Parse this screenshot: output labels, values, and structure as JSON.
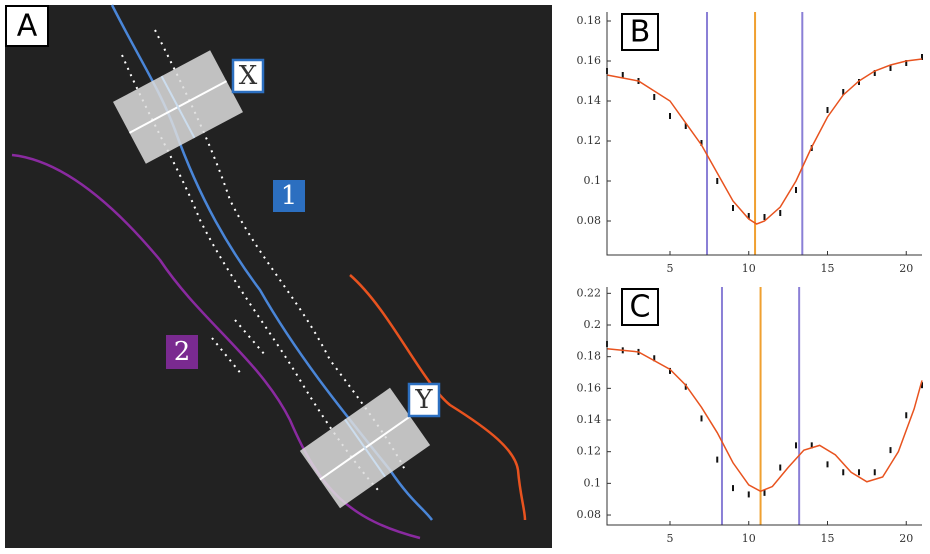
{
  "panel_labels": [
    "A",
    "B",
    "C"
  ],
  "image_labels": [
    "X",
    "Y",
    "1",
    "2"
  ],
  "chart_data": [
    {
      "type": "line",
      "xlim": [
        1,
        21
      ],
      "xticks": [
        5,
        10,
        15,
        20
      ],
      "ylim": [
        0.063,
        0.1845
      ],
      "yticks": [
        0.08,
        0.1,
        0.12,
        0.14,
        0.16,
        0.18
      ],
      "vlines": [
        7.35,
        10.4,
        13.4
      ],
      "vline_colors": [
        "#8a7fd6",
        "#f0a030",
        "#8a7fd6"
      ],
      "series": [
        {
          "style": "points",
          "color": "#111111",
          "x": [
            1,
            2,
            3,
            4,
            5,
            6,
            7,
            8,
            9,
            10,
            11,
            12,
            13,
            14,
            15,
            16,
            17,
            18,
            19,
            20,
            21
          ],
          "values": [
            0.155,
            0.153,
            0.15,
            0.142,
            0.1325,
            0.1275,
            0.119,
            0.1,
            0.0865,
            0.0825,
            0.082,
            0.084,
            0.0955,
            0.1165,
            0.1355,
            0.1445,
            0.1495,
            0.154,
            0.1565,
            0.159,
            0.162
          ]
        },
        {
          "style": "line",
          "color": "#e8531f",
          "x": [
            1,
            3,
            5,
            7,
            8,
            9,
            10,
            10.5,
            11,
            12,
            13,
            14,
            15,
            16,
            17,
            18,
            19,
            20,
            21
          ],
          "values": [
            0.153,
            0.15,
            0.14,
            0.118,
            0.104,
            0.09,
            0.081,
            0.0785,
            0.08,
            0.087,
            0.1,
            0.117,
            0.132,
            0.143,
            0.15,
            0.155,
            0.158,
            0.16,
            0.161
          ]
        }
      ]
    },
    {
      "type": "line",
      "xlim": [
        1,
        21
      ],
      "xticks": [
        5,
        10,
        15,
        20
      ],
      "ylim": [
        0.0737,
        0.224
      ],
      "yticks": [
        0.08,
        0.1,
        0.12,
        0.14,
        0.16,
        0.18,
        0.2,
        0.22
      ],
      "vlines": [
        8.3,
        10.75,
        13.2
      ],
      "vline_colors": [
        "#8a7fd6",
        "#f0a030",
        "#8a7fd6"
      ],
      "series": [
        {
          "style": "points",
          "color": "#111111",
          "x": [
            1,
            2,
            3,
            4,
            5,
            6,
            7,
            8,
            9,
            10,
            11,
            12,
            13,
            14,
            15,
            16,
            17,
            18,
            19,
            20,
            21
          ],
          "values": [
            0.188,
            0.184,
            0.183,
            0.179,
            0.171,
            0.161,
            0.141,
            0.115,
            0.097,
            0.093,
            0.094,
            0.11,
            0.124,
            0.124,
            0.112,
            0.107,
            0.107,
            0.107,
            0.121,
            0.143,
            0.162
          ]
        },
        {
          "style": "line",
          "color": "#e8531f",
          "x": [
            1,
            3,
            5,
            6,
            7,
            8,
            9,
            10,
            10.75,
            11.5,
            12.5,
            13.5,
            14.5,
            15.5,
            16.5,
            17.5,
            18.5,
            19.5,
            20.5,
            21
          ],
          "values": [
            0.185,
            0.183,
            0.172,
            0.162,
            0.148,
            0.132,
            0.113,
            0.099,
            0.095,
            0.098,
            0.11,
            0.121,
            0.124,
            0.118,
            0.107,
            0.101,
            0.104,
            0.12,
            0.147,
            0.165
          ]
        }
      ]
    }
  ]
}
